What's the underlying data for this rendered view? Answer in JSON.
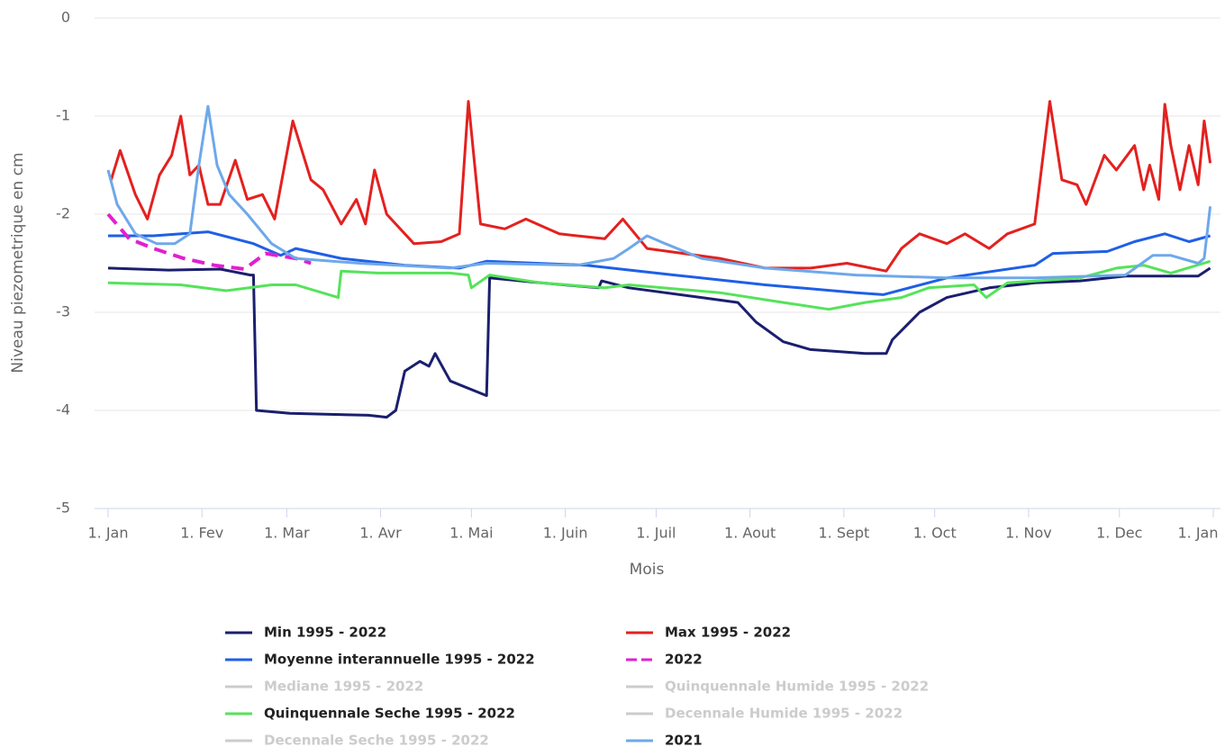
{
  "chart_data": {
    "type": "line",
    "x_label": "Mois",
    "y_label": "Niveau piezometrique en cm",
    "xlim": [
      0,
      365
    ],
    "ylim": [
      -5,
      0
    ],
    "yticks": [
      -5,
      -4,
      -3,
      -2,
      -1,
      0
    ],
    "grid": true,
    "xticks": [
      {
        "value": 0,
        "label": "1. Jan"
      },
      {
        "value": 31,
        "label": "1. Fev"
      },
      {
        "value": 59,
        "label": "1. Mar"
      },
      {
        "value": 90,
        "label": "1. Avr"
      },
      {
        "value": 120,
        "label": "1. Mai"
      },
      {
        "value": 151,
        "label": "1. Juin"
      },
      {
        "value": 181,
        "label": "1. Juil"
      },
      {
        "value": 212,
        "label": "1. Aout"
      },
      {
        "value": 243,
        "label": "1. Sept"
      },
      {
        "value": 273,
        "label": "1. Oct"
      },
      {
        "value": 304,
        "label": "1. Nov"
      },
      {
        "value": 334,
        "label": "1. Dec"
      },
      {
        "value": 365,
        "label": "1. Jan"
      }
    ],
    "series": [
      {
        "name": "Min 1995 - 2022",
        "color": "#1b1f6e",
        "visible": true,
        "x": [
          0,
          20,
          37,
          47,
          48,
          49,
          60,
          86,
          92,
          95,
          98,
          103,
          106,
          108,
          113,
          125,
          126,
          143,
          162,
          163,
          172,
          196,
          208,
          214,
          223,
          232,
          250,
          257,
          259,
          268,
          277,
          291,
          306,
          321,
          336,
          360,
          364
        ],
        "values": [
          -2.55,
          -2.57,
          -2.56,
          -2.62,
          -2.62,
          -4.0,
          -4.03,
          -4.05,
          -4.07,
          -4.0,
          -3.6,
          -3.5,
          -3.55,
          -3.42,
          -3.7,
          -3.85,
          -2.65,
          -2.7,
          -2.75,
          -2.68,
          -2.75,
          -2.85,
          -2.9,
          -3.1,
          -3.3,
          -3.38,
          -3.42,
          -3.42,
          -3.28,
          -3.0,
          -2.85,
          -2.75,
          -2.7,
          -2.68,
          -2.63,
          -2.63,
          -2.55
        ]
      },
      {
        "name": "Max 1995 - 2022",
        "color": "#e3211f",
        "visible": true,
        "x": [
          1,
          4,
          9,
          13,
          17,
          21,
          24,
          27,
          30,
          33,
          37,
          42,
          46,
          51,
          55,
          61,
          67,
          71,
          77,
          82,
          85,
          88,
          92,
          101,
          110,
          116,
          119,
          123,
          131,
          138,
          149,
          164,
          170,
          178,
          190,
          202,
          217,
          232,
          244,
          257,
          262,
          268,
          277,
          283,
          291,
          297,
          306,
          311,
          315,
          320,
          323,
          329,
          333,
          339,
          342,
          344,
          347,
          349,
          351,
          354,
          357,
          360,
          362,
          364
        ],
        "values": [
          -1.65,
          -1.35,
          -1.8,
          -2.05,
          -1.6,
          -1.4,
          -1.0,
          -1.6,
          -1.5,
          -1.9,
          -1.9,
          -1.45,
          -1.85,
          -1.8,
          -2.05,
          -1.05,
          -1.65,
          -1.75,
          -2.1,
          -1.85,
          -2.1,
          -1.55,
          -2.0,
          -2.3,
          -2.28,
          -2.2,
          -0.85,
          -2.1,
          -2.15,
          -2.05,
          -2.2,
          -2.25,
          -2.05,
          -2.35,
          -2.4,
          -2.45,
          -2.55,
          -2.55,
          -2.5,
          -2.58,
          -2.35,
          -2.2,
          -2.3,
          -2.2,
          -2.35,
          -2.2,
          -2.1,
          -0.85,
          -1.65,
          -1.7,
          -1.9,
          -1.4,
          -1.55,
          -1.3,
          -1.75,
          -1.5,
          -1.85,
          -0.88,
          -1.3,
          -1.75,
          -1.3,
          -1.7,
          -1.05,
          -1.48
        ]
      },
      {
        "name": "Moyenne interannuelle 1995 - 2022",
        "color": "#1f5fe6",
        "visible": true,
        "x": [
          0,
          15,
          33,
          48,
          57,
          62,
          77,
          98,
          116,
          125,
          158,
          187,
          217,
          247,
          256,
          277,
          306,
          312,
          330,
          339,
          349,
          357,
          364
        ],
        "values": [
          -2.22,
          -2.22,
          -2.18,
          -2.3,
          -2.42,
          -2.35,
          -2.45,
          -2.52,
          -2.55,
          -2.48,
          -2.52,
          -2.62,
          -2.72,
          -2.8,
          -2.82,
          -2.65,
          -2.52,
          -2.4,
          -2.38,
          -2.28,
          -2.2,
          -2.28,
          -2.22
        ]
      },
      {
        "name": "2022",
        "color": "#e020d0",
        "visible": true,
        "dashed": true,
        "x": [
          0,
          7,
          15,
          25,
          35,
          45,
          52,
          62,
          67
        ],
        "values": [
          -2.0,
          -2.25,
          -2.35,
          -2.45,
          -2.52,
          -2.56,
          -2.4,
          -2.45,
          -2.5
        ]
      },
      {
        "name": "Mediane 1995 - 2022",
        "color": "#cccccc",
        "visible": false
      },
      {
        "name": "Quinquennale Humide 1995 - 2022",
        "color": "#cccccc",
        "visible": false
      },
      {
        "name": "Quinquennale Seche 1995 - 2022",
        "color": "#55e35a",
        "visible": true,
        "x": [
          0,
          24,
          39,
          54,
          62,
          76,
          77,
          89,
          113,
          119,
          120,
          126,
          143,
          164,
          172,
          202,
          223,
          238,
          250,
          262,
          271,
          286,
          290,
          297,
          321,
          333,
          342,
          351,
          364
        ],
        "values": [
          -2.7,
          -2.72,
          -2.78,
          -2.72,
          -2.72,
          -2.85,
          -2.58,
          -2.6,
          -2.6,
          -2.62,
          -2.75,
          -2.62,
          -2.7,
          -2.75,
          -2.72,
          -2.8,
          -2.9,
          -2.97,
          -2.9,
          -2.85,
          -2.75,
          -2.72,
          -2.85,
          -2.7,
          -2.65,
          -2.55,
          -2.52,
          -2.6,
          -2.48
        ]
      },
      {
        "name": "Decennale Humide 1995 - 2022",
        "color": "#cccccc",
        "visible": false
      },
      {
        "name": "Decennale Seche 1995 - 2022",
        "color": "#cccccc",
        "visible": false
      },
      {
        "name": "2021",
        "color": "#6ea8ea",
        "visible": true,
        "x": [
          0,
          3,
          9,
          16,
          22,
          27,
          30,
          33,
          36,
          40,
          46,
          54,
          62,
          83,
          113,
          125,
          155,
          167,
          172,
          178,
          184,
          196,
          217,
          247,
          277,
          306,
          336,
          345,
          351,
          360,
          362,
          364
        ],
        "values": [
          -1.55,
          -1.9,
          -2.2,
          -2.3,
          -2.3,
          -2.2,
          -1.5,
          -0.9,
          -1.5,
          -1.8,
          -2.0,
          -2.3,
          -2.45,
          -2.5,
          -2.55,
          -2.5,
          -2.52,
          -2.45,
          -2.35,
          -2.22,
          -2.3,
          -2.45,
          -2.55,
          -2.62,
          -2.65,
          -2.65,
          -2.62,
          -2.42,
          -2.42,
          -2.5,
          -2.45,
          -1.92
        ]
      }
    ]
  }
}
